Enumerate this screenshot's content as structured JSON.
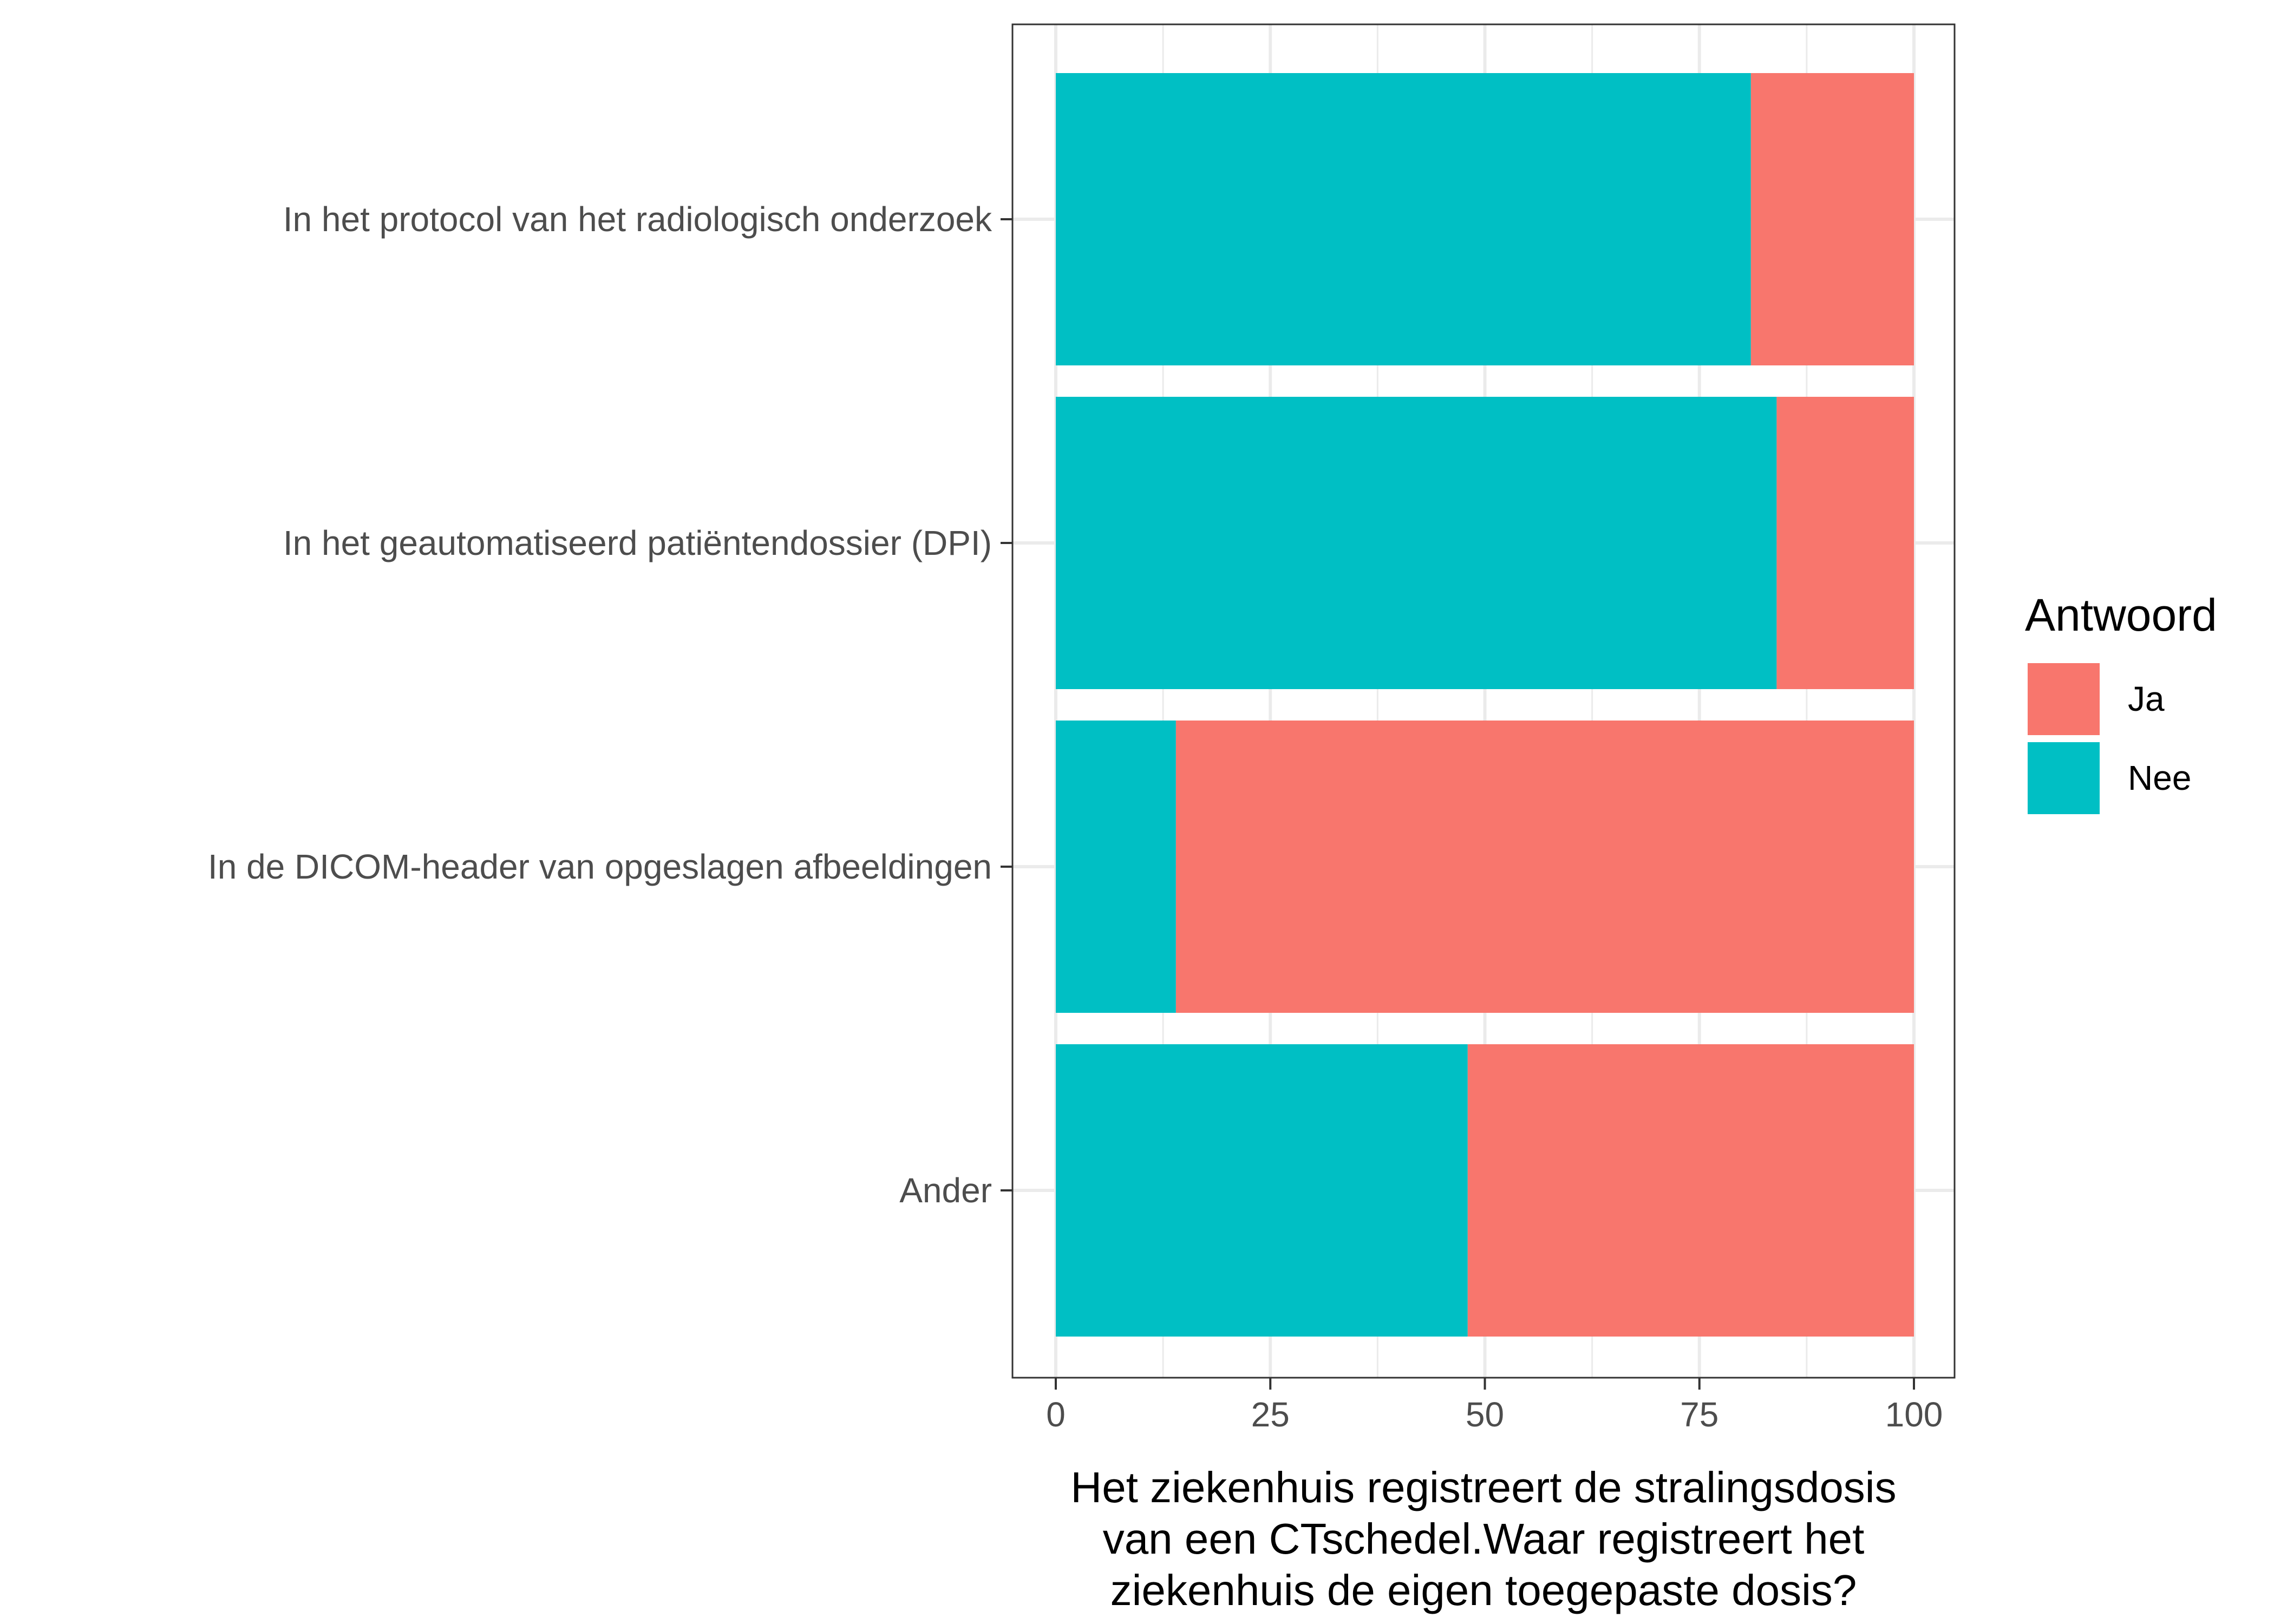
{
  "chart_data": {
    "type": "bar",
    "orientation": "horizontal",
    "stacked": true,
    "categories": [
      "In het protocol van het radiologisch onderzoek",
      "In het geautomatiseerd patiëntendossier (DPI)",
      "In de DICOM-header van opgeslagen afbeeldingen",
      "Ander"
    ],
    "series": [
      {
        "name": "Nee",
        "color": "#00BFC4",
        "values": [
          81,
          84,
          14,
          48
        ]
      },
      {
        "name": "Ja",
        "color": "#F8766D",
        "values": [
          19,
          16,
          86,
          52
        ]
      }
    ],
    "xlim": [
      0,
      100
    ],
    "xticks": [
      "0",
      "25",
      "50",
      "75",
      "100"
    ],
    "xlabel": [
      "Het ziekenhuis registreert de stralingsdosis",
      "van een CTschedel.Waar registreert het",
      "ziekenhuis de eigen toegepaste dosis?"
    ],
    "ylabel": "",
    "grid": true,
    "legend": {
      "title": "Antwoord",
      "position": "right",
      "items": [
        {
          "label": "Ja",
          "color": "#F8766D"
        },
        {
          "label": "Nee",
          "color": "#00BFC4"
        }
      ]
    }
  }
}
